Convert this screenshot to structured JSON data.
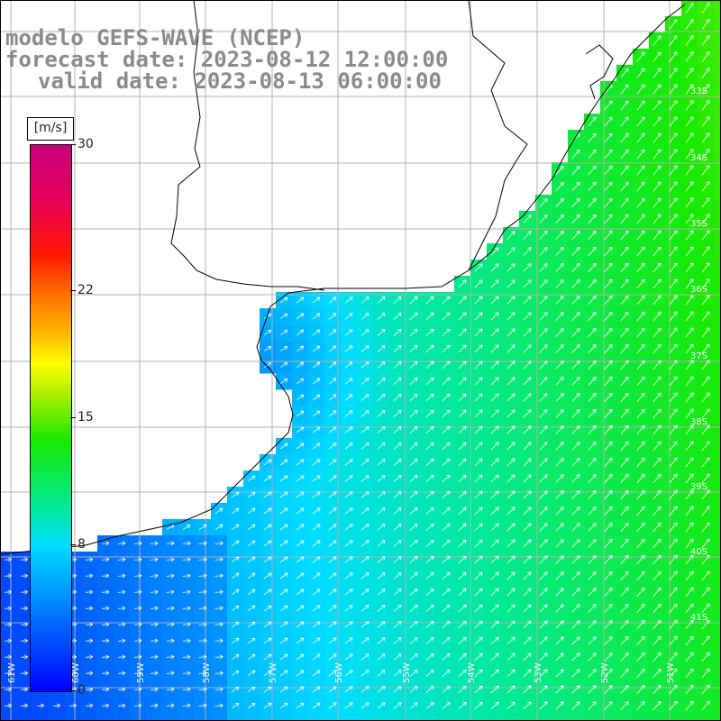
{
  "title": {
    "line1": "modelo GEFS-WAVE (NCEP)",
    "line2": "forecast date: 2023-08-12 12:00:00",
    "line3": "valid date: 2023-08-13 06:00:00"
  },
  "colorbar": {
    "unit": "[m/s]",
    "ticks": [
      {
        "label": "30",
        "value": 30
      },
      {
        "label": "22",
        "value": 22
      },
      {
        "label": "15",
        "value": 15
      },
      {
        "label": "8",
        "value": 8
      },
      {
        "label": "0",
        "value": 0
      }
    ],
    "min": 0,
    "max": 30
  },
  "map": {
    "lat_labels": [
      "33S",
      "34S",
      "35S",
      "36S",
      "37S",
      "38S",
      "39S",
      "40S",
      "41S"
    ],
    "lon_labels": [
      "61W",
      "60W",
      "59W",
      "58W",
      "57W",
      "56W",
      "55W",
      "54W",
      "53W",
      "52W",
      "51W"
    ],
    "colors": {
      "land": "#ffffff",
      "grid": "#b0b0b0",
      "coast": "#000000",
      "arrow": "#ffffff"
    }
  }
}
